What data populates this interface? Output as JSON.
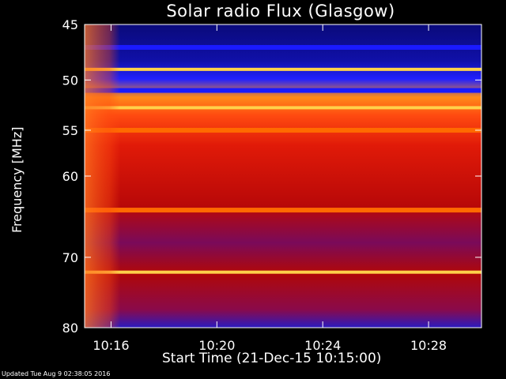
{
  "chart_data": {
    "type": "heatmap",
    "title": "Solar radio Flux (Glasgow)",
    "xlabel": "Start Time (21-Dec-15 10:15:00)",
    "ylabel": "Frequency [MHz]",
    "ylim": [
      45,
      80
    ],
    "y_scale": "log",
    "y_ticks": [
      45,
      50,
      55,
      60,
      70,
      80
    ],
    "x_ticks": [
      "10:16",
      "10:20",
      "10:24",
      "10:28"
    ],
    "x_tick_minutes": [
      1,
      5,
      9,
      13
    ],
    "x_range_minutes": [
      0,
      15
    ],
    "grid": false,
    "legend": "none",
    "colors": {
      "background": "#000000",
      "low": "#1a1aff",
      "mid": "#c80000",
      "high": "#ff6a00",
      "peak": "#ffd24a"
    },
    "bands_mhz": [
      {
        "freq": 47.0,
        "level": "low"
      },
      {
        "freq": 49.0,
        "level": "peak"
      },
      {
        "freq": 51.0,
        "level": "low"
      },
      {
        "freq": 52.7,
        "level": "peak"
      },
      {
        "freq": 55.0,
        "level": "high"
      },
      {
        "freq": 64.0,
        "level": "high"
      },
      {
        "freq": 72.0,
        "level": "peak"
      }
    ]
  },
  "footer": "Updated Tue Aug  9 02:38:05 2016"
}
